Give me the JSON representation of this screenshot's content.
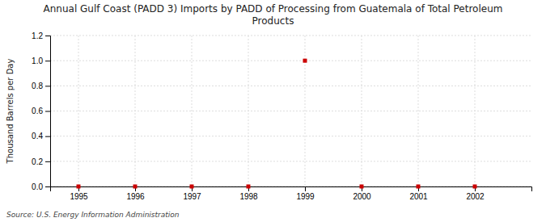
{
  "chart_data": {
    "type": "scatter",
    "title": "Annual Gulf Coast (PADD 3) Imports by PADD of Processing from Guatemala of Total Petroleum\nProducts",
    "y_label": "Thousand Barrels per Day",
    "source": "Source: U.S. Energy Information Administration",
    "x": [
      1995,
      1996,
      1997,
      1998,
      1999,
      2000,
      2001,
      2002
    ],
    "values": [
      0.0,
      0.0,
      0.0,
      0.0,
      1.0,
      0.0,
      0.0,
      0.0
    ],
    "color": "#cc0000",
    "marker": "square",
    "xlim": [
      1994.5,
      2003.0
    ],
    "ylim": [
      0.0,
      1.2
    ],
    "xticks": [
      1995,
      1996,
      1997,
      1998,
      1999,
      2000,
      2001,
      2002
    ],
    "yticks": [
      {
        "value": 0.0,
        "label": "0.0"
      },
      0.2,
      0.4,
      0.6,
      0.8,
      {
        "value": 1.0,
        "label": "1.0"
      },
      1.2
    ],
    "grid": true
  }
}
